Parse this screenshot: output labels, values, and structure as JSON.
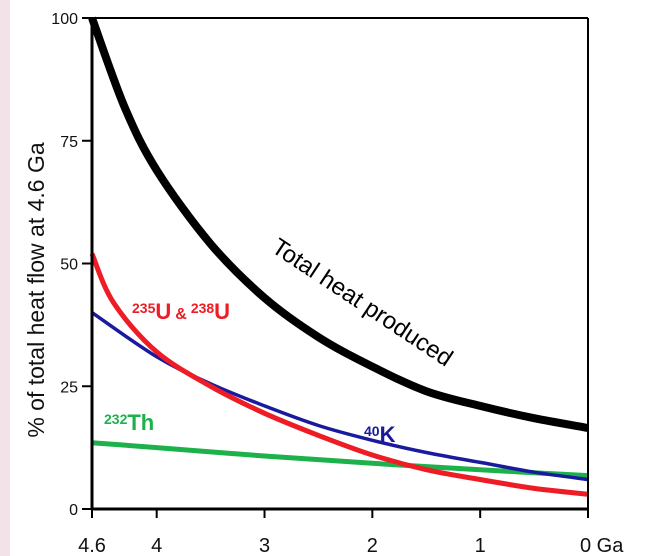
{
  "chart_data": {
    "type": "line",
    "title": "",
    "ylabel": "% of total heat flow at 4.6 Ga",
    "x_unit_label": "Ga",
    "xlim": [
      4.6,
      0
    ],
    "ylim": [
      0,
      100
    ],
    "x_ticks": [
      4.6,
      4,
      3,
      2,
      1,
      0
    ],
    "x_tick_labels": [
      "4.6",
      "4",
      "3",
      "2",
      "1",
      "0 Ga"
    ],
    "y_ticks": [
      0,
      25,
      50,
      75,
      100
    ],
    "y_tick_labels": [
      "0",
      "25",
      "50",
      "75",
      "100"
    ],
    "grid": false,
    "legend": "none",
    "series": [
      {
        "key": "total",
        "name": "Total heat produced",
        "color": "#000000",
        "x": [
          4.6,
          4.3,
          4.0,
          3.5,
          3.0,
          2.5,
          2.0,
          1.5,
          1.0,
          0.5,
          0
        ],
        "y": [
          100,
          82,
          69,
          54,
          43,
          35,
          29,
          24,
          21,
          18.5,
          16.5
        ]
      },
      {
        "key": "uranium",
        "name": "235U & 238U",
        "label_parts": {
          "sup1": "235",
          "el1": "U",
          "amp": "&",
          "sup2": "238",
          "el2": "U"
        },
        "color": "#ee1c25",
        "x": [
          4.6,
          4.4,
          4.0,
          3.5,
          3.0,
          2.5,
          2.0,
          1.5,
          1.0,
          0.5,
          0
        ],
        "y": [
          52,
          42,
          32,
          25,
          19.5,
          15,
          11,
          8,
          6,
          4.2,
          3
        ]
      },
      {
        "key": "potassium",
        "name": "40K",
        "label_parts": {
          "sup": "40",
          "el": "K"
        },
        "color": "#1a1a9c",
        "x": [
          4.6,
          4.0,
          3.5,
          3.0,
          2.5,
          2.0,
          1.5,
          1.0,
          0.5,
          0
        ],
        "y": [
          40,
          31,
          25.5,
          21,
          17,
          14,
          11.5,
          9.5,
          7.5,
          6
        ]
      },
      {
        "key": "thorium",
        "name": "232Th",
        "label_parts": {
          "sup": "232",
          "el": "Th"
        },
        "color": "#1db14b",
        "x": [
          4.6,
          4.0,
          3.0,
          2.0,
          1.0,
          0
        ],
        "y": [
          13.5,
          12.5,
          10.8,
          9.3,
          8,
          6.8
        ]
      }
    ]
  }
}
